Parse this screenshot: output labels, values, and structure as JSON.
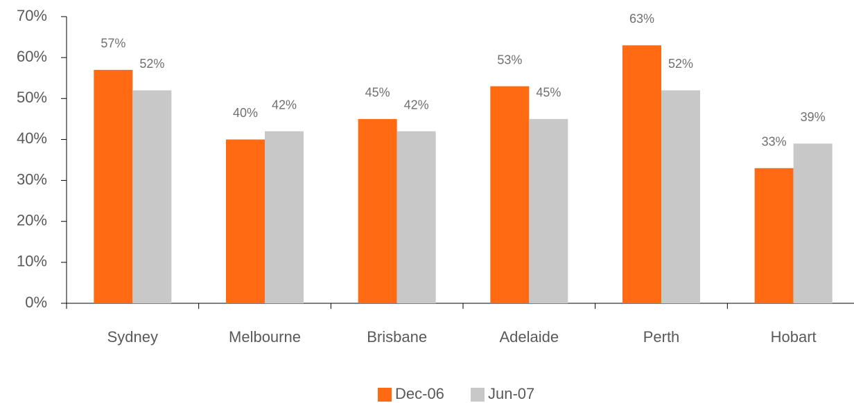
{
  "chart_data": {
    "type": "bar",
    "categories": [
      "Sydney",
      "Melbourne",
      "Brisbane",
      "Adelaide",
      "Perth",
      "Hobart"
    ],
    "series": [
      {
        "name": "Dec-06",
        "color": "#ff6a13",
        "values": [
          57,
          40,
          45,
          53,
          63,
          33
        ],
        "value_labels": [
          "57%",
          "40%",
          "45%",
          "53%",
          "63%",
          "33%"
        ]
      },
      {
        "name": "Jun-07",
        "color": "#c8c8c8",
        "values": [
          52,
          42,
          42,
          45,
          52,
          39
        ],
        "value_labels": [
          "52%",
          "42%",
          "42%",
          "45%",
          "52%",
          "39%"
        ]
      }
    ],
    "ylim": [
      0,
      70
    ],
    "yticks": [
      {
        "value": 0,
        "label": "0%"
      },
      {
        "value": 10,
        "label": "10%"
      },
      {
        "value": 20,
        "label": "20%"
      },
      {
        "value": 30,
        "label": "30%"
      },
      {
        "value": 40,
        "label": "40%"
      },
      {
        "value": 50,
        "label": "50%"
      },
      {
        "value": 60,
        "label": "60%"
      },
      {
        "value": 70,
        "label": "70%"
      }
    ],
    "grid": false,
    "legend": "bottom"
  }
}
